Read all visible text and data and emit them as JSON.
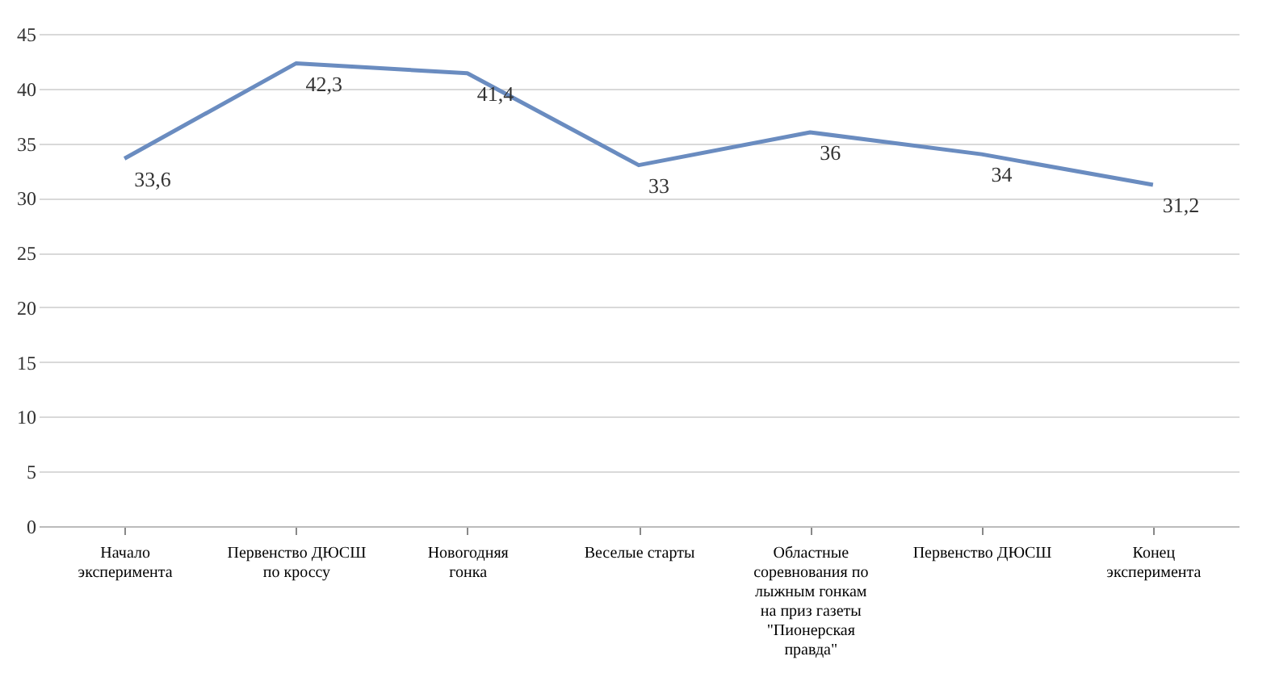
{
  "chart_data": {
    "type": "line",
    "categories": [
      "Начало эксперимента",
      "Первенство ДЮСШ по кроссу",
      "Новогодняя гонка",
      "Веселые старты",
      "Областные соревнования по лыжным гонкам на приз газеты \"Пионерская правда\"",
      "Первенство ДЮСШ",
      "Конец эксперимента"
    ],
    "series": [
      {
        "color": "#6a8cc0",
        "values": [
          33.6,
          42.3,
          41.4,
          33,
          36,
          34,
          31.2
        ],
        "value_labels": [
          "33,6",
          "42,3",
          "41,4",
          "33",
          "36",
          "34",
          "31,2"
        ]
      }
    ],
    "ylim": [
      0,
      45
    ],
    "yticks": [
      0,
      5,
      10,
      15,
      20,
      25,
      30,
      35,
      40,
      45
    ],
    "grid": "y",
    "marker": "none",
    "line_style": "solid"
  }
}
